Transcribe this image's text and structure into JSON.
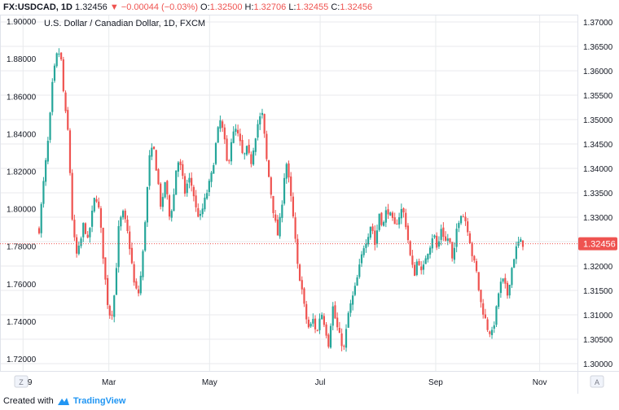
{
  "header": {
    "symbol": "FX:USDCAD, 1D",
    "last": "1.32456",
    "change": "−0.00044 (−0.03%)",
    "open_label": "O:",
    "open": "1.32500",
    "high_label": "H:",
    "high": "1.32706",
    "low_label": "L:",
    "low": "1.32455",
    "close_label": "C:",
    "close": "1.32456",
    "change_icon": "triangle-down-icon"
  },
  "footer": {
    "created_with": "Created with",
    "brand": "TradingView",
    "brand_icon": "tradingview-logo-icon"
  },
  "colors": {
    "up": "#26a69a",
    "down": "#ef5350",
    "price_line": "#ef5350",
    "grid": "#e8eaed"
  },
  "chart_data": {
    "type": "candlestick",
    "title": "U.S. Dollar / Canadian Dollar, 1D, FXCM",
    "x_ticks": [
      "2019",
      "Mar",
      "May",
      "Jul",
      "Sep",
      "Nov"
    ],
    "left_axis_ticks": [
      "1.90000",
      "1.88000",
      "1.86000",
      "1.84000",
      "1.82000",
      "1.80000",
      "1.78000",
      "1.76000",
      "1.74000",
      "1.72000"
    ],
    "right_axis_ticks": [
      "1.37000",
      "1.36500",
      "1.36000",
      "1.35500",
      "1.35000",
      "1.34500",
      "1.34000",
      "1.33500",
      "1.33000",
      "1.32500",
      "1.32000",
      "1.31500",
      "1.31000",
      "1.30500",
      "1.30000"
    ],
    "right_ylim": [
      1.2985,
      1.3715
    ],
    "left_ylim": [
      1.7135,
      1.9035
    ],
    "last_price": 1.32456,
    "last_price_label": "1.32456",
    "left_corner_button": "Z",
    "right_corner_button": "A",
    "price_path": [
      [
        0,
        1.3275
      ],
      [
        4,
        1.336
      ],
      [
        10,
        1.347
      ],
      [
        14,
        1.358
      ],
      [
        18,
        1.363
      ],
      [
        22,
        1.364
      ],
      [
        26,
        1.353
      ],
      [
        30,
        1.347
      ],
      [
        34,
        1.33
      ],
      [
        38,
        1.322
      ],
      [
        42,
        1.324
      ],
      [
        46,
        1.329
      ],
      [
        50,
        1.325
      ],
      [
        54,
        1.33
      ],
      [
        58,
        1.335
      ],
      [
        62,
        1.331
      ],
      [
        66,
        1.322
      ],
      [
        70,
        1.313
      ],
      [
        74,
        1.309
      ],
      [
        78,
        1.315
      ],
      [
        82,
        1.328
      ],
      [
        86,
        1.331
      ],
      [
        90,
        1.328
      ],
      [
        94,
        1.323
      ],
      [
        98,
        1.316
      ],
      [
        102,
        1.314
      ],
      [
        106,
        1.32
      ],
      [
        110,
        1.332
      ],
      [
        114,
        1.343
      ],
      [
        118,
        1.344
      ],
      [
        122,
        1.338
      ],
      [
        126,
        1.331
      ],
      [
        130,
        1.338
      ],
      [
        134,
        1.33
      ],
      [
        138,
        1.333
      ],
      [
        142,
        1.342
      ],
      [
        146,
        1.34
      ],
      [
        150,
        1.335
      ],
      [
        154,
        1.338
      ],
      [
        158,
        1.336
      ],
      [
        162,
        1.331
      ],
      [
        166,
        1.33
      ],
      [
        170,
        1.333
      ],
      [
        174,
        1.336
      ],
      [
        178,
        1.339
      ],
      [
        182,
        1.345
      ],
      [
        186,
        1.35
      ],
      [
        190,
        1.347
      ],
      [
        194,
        1.34
      ],
      [
        198,
        1.346
      ],
      [
        202,
        1.348
      ],
      [
        206,
        1.346
      ],
      [
        210,
        1.342
      ],
      [
        214,
        1.344
      ],
      [
        218,
        1.341
      ],
      [
        222,
        1.346
      ],
      [
        226,
        1.35
      ],
      [
        230,
        1.351
      ],
      [
        234,
        1.342
      ],
      [
        238,
        1.336
      ],
      [
        242,
        1.33
      ],
      [
        246,
        1.326
      ],
      [
        250,
        1.333
      ],
      [
        254,
        1.342
      ],
      [
        258,
        1.336
      ],
      [
        262,
        1.329
      ],
      [
        266,
        1.32
      ],
      [
        270,
        1.316
      ],
      [
        274,
        1.31
      ],
      [
        278,
        1.307
      ],
      [
        282,
        1.309
      ],
      [
        286,
        1.306
      ],
      [
        290,
        1.311
      ],
      [
        294,
        1.308
      ],
      [
        298,
        1.304
      ],
      [
        302,
        1.312
      ],
      [
        306,
        1.308
      ],
      [
        310,
        1.305
      ],
      [
        314,
        1.303
      ],
      [
        318,
        1.31
      ],
      [
        322,
        1.313
      ],
      [
        326,
        1.316
      ],
      [
        330,
        1.32
      ],
      [
        334,
        1.324
      ],
      [
        338,
        1.326
      ],
      [
        342,
        1.329
      ],
      [
        346,
        1.324
      ],
      [
        350,
        1.331
      ],
      [
        354,
        1.328
      ],
      [
        358,
        1.332
      ],
      [
        362,
        1.33
      ],
      [
        366,
        1.328
      ],
      [
        370,
        1.33
      ],
      [
        374,
        1.332
      ],
      [
        378,
        1.328
      ],
      [
        382,
        1.322
      ],
      [
        386,
        1.318
      ],
      [
        390,
        1.322
      ],
      [
        394,
        1.318
      ],
      [
        398,
        1.322
      ],
      [
        402,
        1.324
      ],
      [
        406,
        1.327
      ],
      [
        410,
        1.323
      ],
      [
        414,
        1.328
      ],
      [
        418,
        1.325
      ],
      [
        422,
        1.326
      ],
      [
        426,
        1.32
      ],
      [
        430,
        1.328
      ],
      [
        434,
        1.331
      ],
      [
        438,
        1.33
      ],
      [
        442,
        1.327
      ],
      [
        446,
        1.322
      ],
      [
        450,
        1.319
      ],
      [
        454,
        1.313
      ],
      [
        458,
        1.31
      ],
      [
        462,
        1.307
      ],
      [
        466,
        1.306
      ],
      [
        470,
        1.31
      ],
      [
        474,
        1.316
      ],
      [
        478,
        1.317
      ],
      [
        482,
        1.314
      ],
      [
        486,
        1.319
      ],
      [
        490,
        1.323
      ],
      [
        494,
        1.325
      ],
      [
        498,
        1.3246
      ]
    ],
    "candle_count": 220,
    "x_tick_positions_days": [
      11,
      63,
      124,
      191,
      261,
      324
    ],
    "total_days": 338
  }
}
